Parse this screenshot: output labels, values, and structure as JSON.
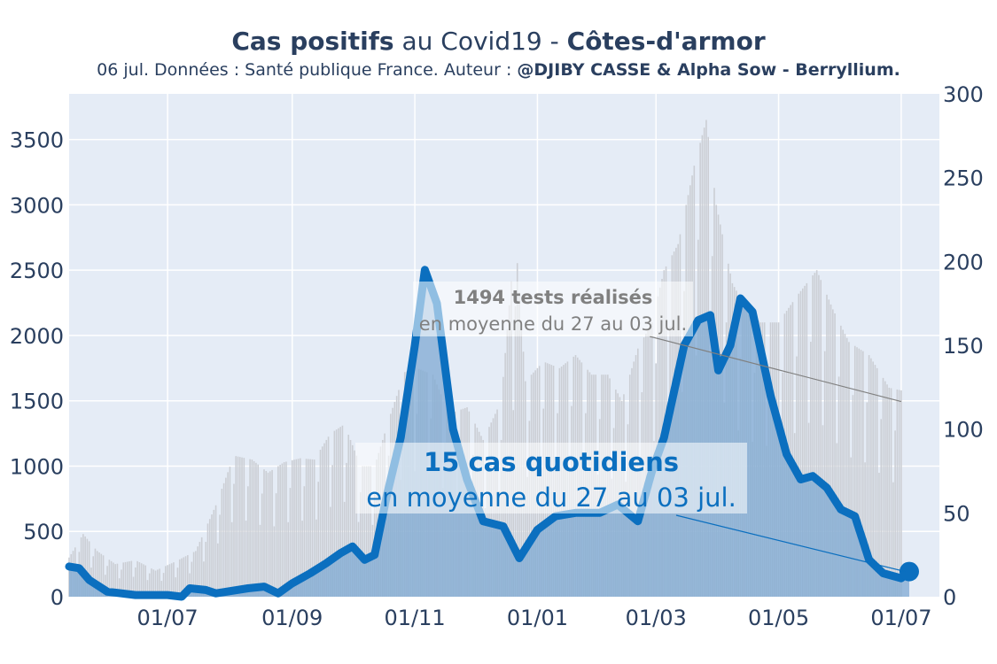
{
  "header": {
    "title_bold_1": "Cas positifs",
    "title_plain": " au Covid19 - ",
    "title_bold_2": "Côtes-d'armor",
    "subtitle_plain": "06 jul. Données : Santé publique France. Auteur : ",
    "subtitle_bold": "@DJIBY CASSE & Alpha Sow - Berryllium."
  },
  "colors": {
    "plot_bg": "#e5ecf6",
    "grid": "#ffffff",
    "cases_line": "#0b6fbf",
    "cases_fill": "#7fa9d3",
    "tests_bars": "#cbced4",
    "tests_text": "#808080",
    "text": "#2a3f5f"
  },
  "chart_data": {
    "type": "line",
    "x_tick_labels": [
      "01/07",
      "01/09",
      "01/11",
      "01/01",
      "01/03",
      "01/05",
      "01/07"
    ],
    "x_tick_dates": [
      "2020-07-01",
      "2020-09-01",
      "2020-11-01",
      "2021-01-01",
      "2021-03-01",
      "2021-05-01",
      "2021-07-01"
    ],
    "x_range": [
      "2020-05-13",
      "2021-07-20"
    ],
    "y_left": {
      "range": [
        0,
        3850
      ],
      "ticks": [
        0,
        500,
        1000,
        1500,
        2000,
        2500,
        3000,
        3500
      ]
    },
    "y_right": {
      "range": [
        0,
        300
      ],
      "ticks": [
        0,
        50,
        100,
        150,
        200,
        250,
        300
      ]
    },
    "grid": true,
    "legend": "none",
    "series": [
      {
        "axis": "left",
        "style": "bars",
        "points": [
          [
            "2020-05-13",
            300
          ],
          [
            "2020-05-20",
            480
          ],
          [
            "2020-05-27",
            350
          ],
          [
            "2020-06-05",
            250
          ],
          [
            "2020-06-15",
            280
          ],
          [
            "2020-06-25",
            200
          ],
          [
            "2020-07-05",
            270
          ],
          [
            "2020-07-15",
            350
          ],
          [
            "2020-07-25",
            700
          ],
          [
            "2020-08-03",
            1080
          ],
          [
            "2020-08-12",
            1050
          ],
          [
            "2020-08-20",
            950
          ],
          [
            "2020-08-28",
            1030
          ],
          [
            "2020-09-05",
            1060
          ],
          [
            "2020-09-12",
            1050
          ],
          [
            "2020-09-20",
            1250
          ],
          [
            "2020-09-27",
            1320
          ],
          [
            "2020-10-05",
            1000
          ],
          [
            "2020-10-12",
            1000
          ],
          [
            "2020-10-20",
            1400
          ],
          [
            "2020-10-27",
            1720
          ],
          [
            "2020-11-02",
            1750
          ],
          [
            "2020-11-10",
            1700
          ],
          [
            "2020-11-18",
            1400
          ],
          [
            "2020-11-27",
            1450
          ],
          [
            "2020-12-05",
            1200
          ],
          [
            "2020-12-14",
            1500
          ],
          [
            "2020-12-21",
            2780
          ],
          [
            "2020-12-26",
            1650
          ],
          [
            "2021-01-04",
            1800
          ],
          [
            "2021-01-12",
            1750
          ],
          [
            "2021-01-20",
            1850
          ],
          [
            "2021-01-28",
            1700
          ],
          [
            "2021-02-05",
            1700
          ],
          [
            "2021-02-12",
            1500
          ],
          [
            "2021-02-20",
            1900
          ],
          [
            "2021-02-27",
            2100
          ],
          [
            "2021-03-05",
            2500
          ],
          [
            "2021-03-12",
            2700
          ],
          [
            "2021-03-20",
            3300
          ],
          [
            "2021-03-26",
            3650
          ],
          [
            "2021-03-31",
            3000
          ],
          [
            "2021-04-08",
            2400
          ],
          [
            "2021-04-15",
            2200
          ],
          [
            "2021-04-22",
            2100
          ],
          [
            "2021-05-01",
            2100
          ],
          [
            "2021-05-10",
            2300
          ],
          [
            "2021-05-20",
            2500
          ],
          [
            "2021-05-28",
            2200
          ],
          [
            "2021-06-05",
            1950
          ],
          [
            "2021-06-15",
            1850
          ],
          [
            "2021-06-25",
            1600
          ],
          [
            "2021-07-01",
            1580
          ]
        ]
      },
      {
        "axis": "right",
        "style": "thick-line-with-fill",
        "points": [
          [
            "2020-05-13",
            18
          ],
          [
            "2020-05-18",
            17
          ],
          [
            "2020-05-23",
            10
          ],
          [
            "2020-06-01",
            3
          ],
          [
            "2020-06-15",
            1
          ],
          [
            "2020-07-01",
            1
          ],
          [
            "2020-07-08",
            0
          ],
          [
            "2020-07-12",
            5
          ],
          [
            "2020-07-20",
            4
          ],
          [
            "2020-07-25",
            2
          ],
          [
            "2020-08-10",
            5
          ],
          [
            "2020-08-18",
            6
          ],
          [
            "2020-08-25",
            2
          ],
          [
            "2020-09-01",
            8
          ],
          [
            "2020-09-10",
            14
          ],
          [
            "2020-09-18",
            20
          ],
          [
            "2020-09-25",
            26
          ],
          [
            "2020-10-01",
            30
          ],
          [
            "2020-10-07",
            22
          ],
          [
            "2020-10-12",
            25
          ],
          [
            "2020-10-18",
            60
          ],
          [
            "2020-10-25",
            95
          ],
          [
            "2020-11-01",
            150
          ],
          [
            "2020-11-06",
            195
          ],
          [
            "2020-11-12",
            175
          ],
          [
            "2020-11-20",
            100
          ],
          [
            "2020-11-27",
            70
          ],
          [
            "2020-12-05",
            45
          ],
          [
            "2020-12-15",
            42
          ],
          [
            "2020-12-23",
            23
          ],
          [
            "2021-01-01",
            40
          ],
          [
            "2021-01-10",
            48
          ],
          [
            "2021-01-20",
            50
          ],
          [
            "2021-02-01",
            50
          ],
          [
            "2021-02-10",
            55
          ],
          [
            "2021-02-20",
            45
          ],
          [
            "2021-02-27",
            75
          ],
          [
            "2021-03-05",
            95
          ],
          [
            "2021-03-15",
            150
          ],
          [
            "2021-03-22",
            165
          ],
          [
            "2021-03-28",
            168
          ],
          [
            "2021-04-01",
            135
          ],
          [
            "2021-04-07",
            150
          ],
          [
            "2021-04-12",
            178
          ],
          [
            "2021-04-18",
            170
          ],
          [
            "2021-04-27",
            120
          ],
          [
            "2021-05-05",
            85
          ],
          [
            "2021-05-12",
            70
          ],
          [
            "2021-05-18",
            72
          ],
          [
            "2021-05-25",
            65
          ],
          [
            "2021-06-01",
            52
          ],
          [
            "2021-06-08",
            48
          ],
          [
            "2021-06-15",
            22
          ],
          [
            "2021-06-22",
            14
          ],
          [
            "2021-07-01",
            11
          ],
          [
            "2021-07-05",
            15
          ]
        ]
      }
    ],
    "annotations": [
      {
        "bold": "1494 tests réalisés",
        "text": "en moyenne du 27 au 03 jul.",
        "color": "#808080",
        "arrow_to": [
          "2021-07-01",
          1494
        ],
        "axis": "left"
      },
      {
        "bold": "15 cas quotidiens",
        "text": "en moyenne du 27 au 03 jul.",
        "color": "#0b6fbf",
        "arrow_to": [
          "2021-07-03",
          15
        ],
        "axis": "right"
      }
    ]
  }
}
